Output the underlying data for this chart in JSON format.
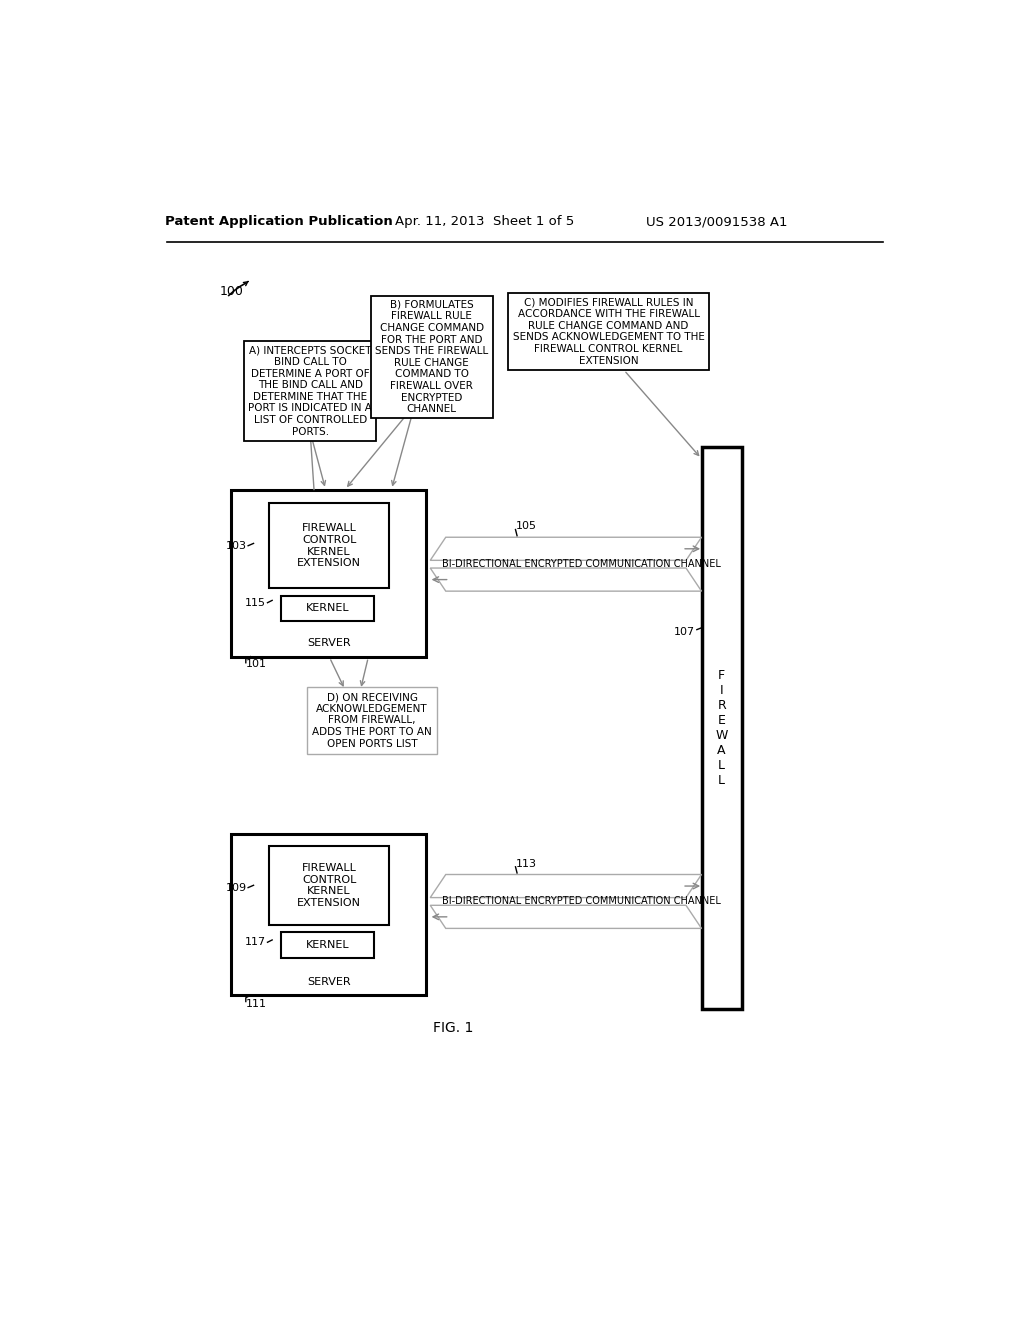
{
  "bg_color": "#ffffff",
  "header_left": "Patent Application Publication",
  "header_mid": "Apr. 11, 2013  Sheet 1 of 5",
  "header_right": "US 2013/0091538 A1",
  "fig_label": "FIG. 1",
  "text_A": "A) INTERCEPTS SOCKET\nBIND CALL TO\nDETERMINE A PORT OF\nTHE BIND CALL AND\nDETERMINE THAT THE\nPORT IS INDICATED IN A\nLIST OF CONTROLLED\nPORTS.",
  "text_B": "B) FORMULATES\nFIREWALL RULE\nCHANGE COMMAND\nFOR THE PORT AND\nSENDS THE FIREWALL\nRULE CHANGE\nCOMMAND TO\nFIREWALL OVER\nENCRYPTED\nCHANNEL",
  "text_C": "C) MODIFIES FIREWALL RULES IN\nACCORDANCE WITH THE FIREWALL\nRULE CHANGE COMMAND AND\nSENDS ACKNOWLEDGEMENT TO THE\nFIREWALL CONTROL KERNEL\nEXTENSION",
  "text_D": "D) ON RECEIVING\nACKNOWLEDGEMENT\nFROM FIREWALL,\nADDS THE PORT TO AN\nOPEN PORTS LIST",
  "text_fck1": "FIREWALL\nCONTROL\nKERNEL\nEXTENSION",
  "text_kernel1": "KERNEL",
  "text_server1": "SERVER",
  "text_fck2": "FIREWALL\nCONTROL\nKERNEL\nEXTENSION",
  "text_kernel2": "KERNEL",
  "text_server2": "SERVER",
  "text_channel1": "BI-DIRECTIONAL ENCRYPTED COMMUNICATION CHANNEL",
  "text_channel2": "BI-DIRECTIONAL ENCRYPTED COMMUNICATION CHANNEL",
  "text_firewall": "F\nI\nR\nE\nW\nA\nL\nL",
  "label_100": "100",
  "label_101": "101",
  "label_103": "103",
  "label_105": "105",
  "label_107": "107",
  "label_109": "109",
  "label_111": "111",
  "label_113": "113",
  "label_115": "115",
  "label_117": "117"
}
